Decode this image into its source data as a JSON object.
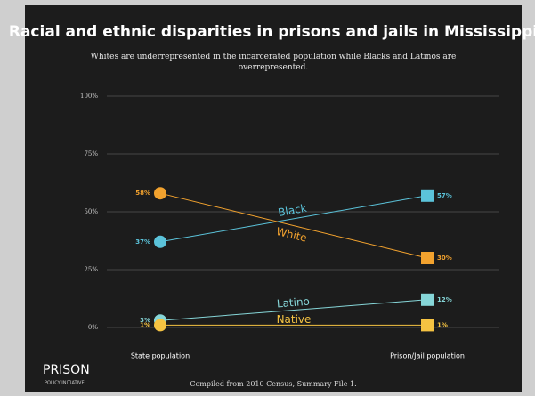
{
  "chart_data": {
    "type": "slope",
    "title": "Racial and ethnic disparities in prisons and jails in Mississippi",
    "subtitle": "Whites are underrepresented in the incarcerated population while Blacks and Latinos are overrepresented.",
    "categories": [
      "State population",
      "Prison/Jail population"
    ],
    "series": [
      {
        "name": "Black",
        "color": "#5bc3da",
        "values": [
          37,
          57
        ],
        "value_labels": [
          "37%",
          "57%"
        ]
      },
      {
        "name": "White",
        "color": "#f2a22e",
        "values": [
          58,
          30
        ],
        "value_labels": [
          "58%",
          "30%"
        ]
      },
      {
        "name": "Latino",
        "color": "#86d6d8",
        "values": [
          3,
          12
        ],
        "value_labels": [
          "3%",
          "12%"
        ]
      },
      {
        "name": "Native",
        "color": "#f5c342",
        "values": [
          1,
          1
        ],
        "value_labels": [
          "1%",
          "1%"
        ]
      }
    ],
    "ylim": [
      0,
      100
    ],
    "yticks": [
      {
        "value": 0,
        "label": "0%"
      },
      {
        "value": 25,
        "label": "25%"
      },
      {
        "value": 50,
        "label": "50%"
      },
      {
        "value": 75,
        "label": "75%"
      },
      {
        "value": 100,
        "label": "100%"
      }
    ],
    "grid": true,
    "source": "Compiled from 2010 Census, Summary File 1."
  },
  "logo": {
    "name": "PRISON",
    "subtitle": "POLICY INITIATIVE"
  }
}
